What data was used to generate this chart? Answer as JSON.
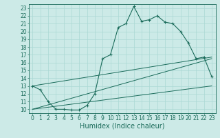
{
  "title": "",
  "xlabel": "Humidex (Indice chaleur)",
  "ylabel": "",
  "bg_color": "#cceae7",
  "line_color": "#1a6b5a",
  "xlim": [
    -0.5,
    23.5
  ],
  "ylim": [
    9.5,
    23.5
  ],
  "yticks": [
    10,
    11,
    12,
    13,
    14,
    15,
    16,
    17,
    18,
    19,
    20,
    21,
    22,
    23
  ],
  "xticks": [
    0,
    1,
    2,
    3,
    4,
    5,
    6,
    7,
    8,
    9,
    10,
    11,
    12,
    13,
    14,
    15,
    16,
    17,
    18,
    19,
    20,
    21,
    22,
    23
  ],
  "series1_x": [
    0,
    1,
    2,
    3,
    4,
    5,
    6,
    7,
    8,
    9,
    10,
    11,
    12,
    13,
    14,
    15,
    16,
    17,
    18,
    19,
    20,
    21,
    22,
    23
  ],
  "series1_y": [
    13.0,
    12.5,
    11.0,
    10.0,
    10.0,
    9.9,
    9.9,
    10.5,
    12.0,
    16.5,
    17.0,
    20.5,
    21.0,
    23.2,
    21.3,
    21.5,
    22.0,
    21.2,
    21.0,
    20.0,
    18.5,
    16.5,
    16.7,
    14.2
  ],
  "series2_x": [
    0,
    23
  ],
  "series2_y": [
    13.0,
    16.7
  ],
  "series3_x": [
    0,
    23
  ],
  "series3_y": [
    10.0,
    16.5
  ],
  "series4_x": [
    0,
    23
  ],
  "series4_y": [
    10.0,
    13.0
  ],
  "grid_color": "#aad8d4",
  "tick_label_fontsize": 5.5,
  "xlabel_fontsize": 7.0
}
